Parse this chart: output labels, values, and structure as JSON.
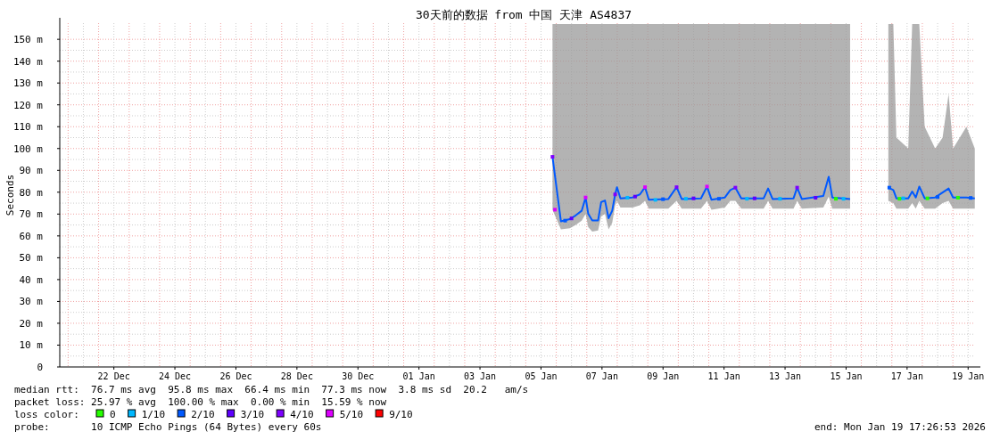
{
  "chart_data": {
    "type": "line",
    "title": "30天前的数据 from 中国 天津 AS4837",
    "ylabel": "Seconds",
    "xlim": [
      "2025-12-20T17:26",
      "2026-01-19T17:26"
    ],
    "xticks": [
      {
        "value": "2025-12-22T12:00",
        "label": "22 Dec"
      },
      {
        "value": "2025-12-24T12:00",
        "label": "24 Dec"
      },
      {
        "value": "2025-12-26T12:00",
        "label": "26 Dec"
      },
      {
        "value": "2025-12-28T12:00",
        "label": "28 Dec"
      },
      {
        "value": "2025-12-30T12:00",
        "label": "30 Dec"
      },
      {
        "value": "2026-01-01T12:00",
        "label": "01 Jan"
      },
      {
        "value": "2026-01-03T12:00",
        "label": "03 Jan"
      },
      {
        "value": "2026-01-05T12:00",
        "label": "05 Jan"
      },
      {
        "value": "2026-01-07T12:00",
        "label": "07 Jan"
      },
      {
        "value": "2026-01-09T12:00",
        "label": "09 Jan"
      },
      {
        "value": "2026-01-11T12:00",
        "label": "11 Jan"
      },
      {
        "value": "2026-01-13T12:00",
        "label": "13 Jan"
      },
      {
        "value": "2026-01-15T12:00",
        "label": "15 Jan"
      },
      {
        "value": "2026-01-17T12:00",
        "label": "17 Jan"
      },
      {
        "value": "2026-01-19T12:00",
        "label": "19 Jan"
      }
    ],
    "ylim": [
      0,
      157.4
    ],
    "yticks": [
      0,
      {
        "value": 10,
        "label": "10 m"
      },
      {
        "value": 20,
        "label": "20 m"
      },
      {
        "value": 30,
        "label": "30 m"
      },
      {
        "value": 40,
        "label": "40 m"
      },
      {
        "value": 50,
        "label": "50 m"
      },
      {
        "value": 60,
        "label": "60 m"
      },
      {
        "value": 70,
        "label": "70 m"
      },
      {
        "value": 80,
        "label": "80 m"
      },
      {
        "value": 90,
        "label": "90 m"
      },
      {
        "value": 100,
        "label": "100 m"
      },
      {
        "value": 110,
        "label": "110 m"
      },
      {
        "value": 120,
        "label": "120 m"
      },
      {
        "value": 130,
        "label": "130 m"
      },
      {
        "value": 140,
        "label": "140 m"
      },
      {
        "value": 150,
        "label": "150 m"
      }
    ],
    "grid": true,
    "legend": "bottom",
    "legend_title": "loss color:",
    "series": [
      {
        "color": "#0059ff",
        "x": [
          "2026-01-05T21:03",
          "2026-01-06T03:40",
          "2026-01-06T10:40",
          "2026-01-06T15:20",
          "2026-01-06T20:00",
          "2026-01-06T23:05",
          "2026-01-07T01:10",
          "2026-01-07T04:20",
          "2026-01-07T08:55",
          "2026-01-07T11:20",
          "2026-01-07T14:20",
          "2026-01-07T17:10",
          "2026-01-07T20:00",
          "2026-01-07T22:20",
          "2026-01-07T23:45",
          "2026-01-08T02:30",
          "2026-01-08T12:00",
          "2026-01-08T17:50",
          "2026-01-08T21:50",
          "2026-01-09T00:50",
          "2026-01-09T16:10",
          "2026-01-09T22:40",
          "2026-01-10T02:40",
          "2026-01-10T17:50",
          "2026-01-10T22:35",
          "2026-01-11T02:05",
          "2026-01-11T12:40",
          "2026-01-11T16:55",
          "2026-01-11T20:55",
          "2026-01-12T01:35",
          "2026-01-12T19:10",
          "2026-01-12T22:40",
          "2026-01-13T02:10",
          "2026-01-13T18:40",
          "2026-01-13T21:30",
          "2026-01-14T01:10",
          "2026-01-14T18:05",
          "2026-01-14T22:20",
          "2026-01-15T01:10",
          "2026-01-15T15:10",
          "2026-01-16T06:00",
          "2026-01-16T21:15",
          "2026-01-17T01:10",
          "2026-01-17T03:35",
          "2026-01-17T12:55",
          "2026-01-17T16:00",
          "2026-01-17T18:50",
          "2026-01-17T21:35",
          "2026-01-18T01:50",
          "2026-01-18T10:05",
          "2026-01-18T15:55",
          "2026-01-18T20:40",
          "2026-01-19T00:10",
          "2026-01-19T10:40",
          "2026-01-19T17:15"
        ],
        "values": [
          96.2,
          66.7,
          67.7,
          69.4,
          71.5,
          77.6,
          70.1,
          67.1,
          67.1,
          75.5,
          76.2,
          68.1,
          71.5,
          79.0,
          82.3,
          77.2,
          77.6,
          79.0,
          82.3,
          76.6,
          76.9,
          82.3,
          76.9,
          77.2,
          82.6,
          76.6,
          77.6,
          81.0,
          82.1,
          77.2,
          77.2,
          81.7,
          76.9,
          77.2,
          82.1,
          76.9,
          78.3,
          87.1,
          77.6,
          76.9,
          null,
          82.1,
          81.0,
          77.2,
          77.2,
          80.3,
          77.6,
          82.6,
          77.2,
          77.6,
          79.9,
          81.7,
          77.6,
          77.6,
          77.2
        ],
        "lower": [
          72.0,
          63.0,
          63.5,
          65.0,
          67.0,
          70.0,
          64.0,
          62.0,
          62.5,
          69.0,
          70.0,
          63.0,
          66.0,
          74.0,
          76.0,
          73.0,
          73.0,
          74.0,
          76.0,
          72.5,
          72.5,
          76.0,
          72.5,
          72.5,
          76.0,
          72.0,
          73.0,
          76.0,
          76.0,
          72.5,
          72.5,
          76.0,
          72.5,
          72.5,
          76.0,
          72.5,
          73.0,
          78.0,
          72.5,
          72.5,
          null,
          76.0,
          75.0,
          72.5,
          72.5,
          75.0,
          72.5,
          76.0,
          72.5,
          72.5,
          75.0,
          76.0,
          72.5,
          72.5,
          72.5
        ],
        "upper": [
          157,
          157,
          157,
          157,
          157,
          157,
          157,
          157,
          157,
          157,
          157,
          157,
          157,
          157,
          157,
          157,
          157,
          157,
          157,
          157,
          157,
          157,
          157,
          157,
          157,
          157,
          157,
          157,
          157,
          157,
          157,
          157,
          157,
          157,
          157,
          157,
          157,
          157,
          157,
          157,
          null,
          157,
          157,
          105,
          100,
          157,
          157,
          157,
          110,
          100,
          105,
          125,
          100,
          110,
          100
        ]
      },
      {
        "type": "scatter",
        "name": "0",
        "color": "#26ff00",
        "marker": "square",
        "x": [
          "2026-01-15T04:00",
          "2026-01-17T06:00",
          "2026-01-18T04:00",
          "2026-01-19T04:00"
        ],
        "values": [
          77.0,
          77.0,
          77.2,
          77.5
        ]
      },
      {
        "type": "scatter",
        "name": "1/10",
        "color": "#00b8ff",
        "marker": "square",
        "x": [
          "2026-01-08T08:00",
          "2026-01-09T06:00",
          "2026-01-10T06:00",
          "2026-01-12T06:00",
          "2026-01-13T08:00",
          "2026-01-15T10:00",
          "2026-01-17T09:00"
        ],
        "values": [
          77.5,
          76.5,
          77.0,
          77.0,
          77.0,
          77.0,
          77.2
        ]
      },
      {
        "type": "scatter",
        "name": "2/10",
        "color": "#0059ff",
        "marker": "square",
        "x": [
          "2026-01-06T07:00",
          "2026-01-09T12:00",
          "2026-01-11T08:00",
          "2026-01-16T22:00",
          "2026-01-18T12:00",
          "2026-01-19T14:00"
        ],
        "values": [
          67.0,
          76.8,
          77.0,
          82.1,
          77.8,
          77.4
        ]
      },
      {
        "type": "scatter",
        "name": "3/10",
        "color": "#5e00ff",
        "marker": "square",
        "x": [
          "2026-01-06T12:00",
          "2026-01-08T14:00",
          "2026-01-10T12:00",
          "2026-01-12T12:00",
          "2026-01-14T12:00"
        ],
        "values": [
          68.0,
          78.0,
          77.2,
          77.2,
          77.5
        ]
      },
      {
        "type": "scatter",
        "name": "4/10",
        "color": "#7e00ff",
        "marker": "square",
        "x": [
          "2026-01-05T21:03",
          "2026-01-07T22:20",
          "2026-01-09T22:40",
          "2026-01-11T20:55",
          "2026-01-13T21:30"
        ],
        "values": [
          96.2,
          79.0,
          82.3,
          82.1,
          82.1
        ]
      },
      {
        "type": "scatter",
        "name": "5/10",
        "color": "#dd00ff",
        "marker": "square",
        "x": [
          "2026-01-05T23:00",
          "2026-01-06T23:05",
          "2026-01-08T21:50",
          "2026-01-10T22:35"
        ],
        "values": [
          72.0,
          77.6,
          82.3,
          82.6
        ]
      },
      {
        "type": "scatter",
        "name": "9/10",
        "color": "#ff0000",
        "marker": "square"
      }
    ],
    "annotations": [
      "median rtt:  76.7 ms avg  95.8 ms max  66.4 ms min  77.3 ms now  3.8 ms sd  20.2   am/s",
      "packet loss: 25.97 % avg  100.00 % max  0.00 % min  15.59 % now",
      "probe:       10 ICMP Echo Pings (64 Bytes) every 60s",
      "end: Mon Jan 19 17:26:53 2026"
    ]
  }
}
